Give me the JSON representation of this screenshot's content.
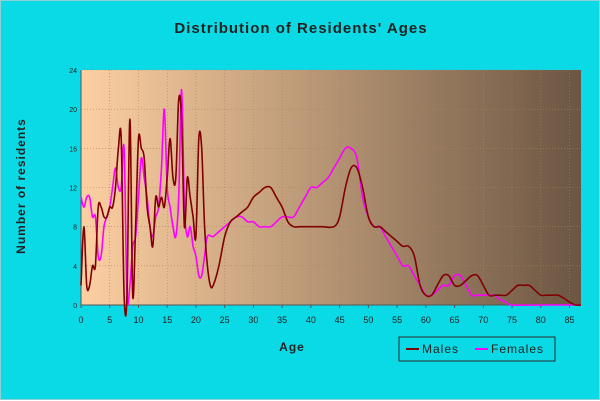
{
  "chart_data": {
    "type": "line",
    "title": "Distribution of Residents' Ages",
    "xlabel": "Age",
    "ylabel": "Number of residents",
    "xlim": [
      0,
      87
    ],
    "ylim": [
      0,
      24
    ],
    "x_ticks": [
      "0",
      "5",
      "10",
      "15",
      "20",
      "25",
      "30",
      "35",
      "40",
      "45",
      "50",
      "55",
      "60",
      "65",
      "70",
      "75",
      "80",
      "85"
    ],
    "y_ticks": [
      "0",
      "4",
      "8",
      "12",
      "16",
      "20",
      "24"
    ],
    "grid": true,
    "legend_position": "bottom-right",
    "colors": {
      "background": "#0ad9e6",
      "plot_start": "#fdd0a2",
      "plot_end": "#6b5643",
      "grid": "#b08060"
    },
    "series": [
      {
        "name": "Males",
        "color": "#800000",
        "points": [
          [
            0,
            2
          ],
          [
            0.5,
            8
          ],
          [
            1,
            2
          ],
          [
            1.5,
            2
          ],
          [
            2,
            4
          ],
          [
            2.5,
            4
          ],
          [
            3,
            10
          ],
          [
            3.5,
            10
          ],
          [
            4,
            9
          ],
          [
            4.5,
            9
          ],
          [
            5,
            10
          ],
          [
            5.5,
            10
          ],
          [
            6,
            12
          ],
          [
            6.5,
            16
          ],
          [
            7,
            17
          ],
          [
            7.5,
            1
          ],
          [
            8,
            1
          ],
          [
            8.5,
            19
          ],
          [
            9,
            1
          ],
          [
            9.5,
            8
          ],
          [
            10,
            17
          ],
          [
            10.5,
            16
          ],
          [
            11,
            15
          ],
          [
            11.5,
            10
          ],
          [
            12,
            8
          ],
          [
            12.5,
            6
          ],
          [
            13,
            11
          ],
          [
            13.5,
            10
          ],
          [
            14,
            11
          ],
          [
            14.5,
            10
          ],
          [
            15,
            13
          ],
          [
            15.5,
            17
          ],
          [
            16,
            13
          ],
          [
            16.5,
            13
          ],
          [
            17,
            21
          ],
          [
            17.5,
            19
          ],
          [
            18,
            8
          ],
          [
            18.5,
            13
          ],
          [
            19,
            11
          ],
          [
            19.5,
            9
          ],
          [
            20,
            7
          ],
          [
            20.5,
            17
          ],
          [
            21,
            16
          ],
          [
            21.5,
            8
          ],
          [
            22,
            4
          ],
          [
            22.5,
            2
          ],
          [
            23,
            2
          ],
          [
            24,
            4
          ],
          [
            25,
            7
          ],
          [
            26,
            8.5
          ],
          [
            27,
            9
          ],
          [
            28,
            9.5
          ],
          [
            29,
            10
          ],
          [
            30,
            11
          ],
          [
            31,
            11.5
          ],
          [
            32,
            12
          ],
          [
            33,
            12
          ],
          [
            34,
            11
          ],
          [
            35,
            10
          ],
          [
            36,
            8.5
          ],
          [
            37,
            8
          ],
          [
            38,
            8
          ],
          [
            40,
            8
          ],
          [
            42,
            8
          ],
          [
            44,
            8
          ],
          [
            45,
            9
          ],
          [
            46,
            12
          ],
          [
            47,
            14
          ],
          [
            48,
            14
          ],
          [
            49,
            12
          ],
          [
            50,
            9
          ],
          [
            51,
            8
          ],
          [
            52,
            8
          ],
          [
            53,
            7.5
          ],
          [
            54,
            7
          ],
          [
            55,
            6.5
          ],
          [
            56,
            6
          ],
          [
            57,
            6
          ],
          [
            58,
            5
          ],
          [
            59,
            2
          ],
          [
            60,
            1
          ],
          [
            61,
            1
          ],
          [
            62,
            2
          ],
          [
            63,
            3
          ],
          [
            64,
            3
          ],
          [
            65,
            2
          ],
          [
            66,
            2
          ],
          [
            67,
            2.5
          ],
          [
            68,
            3
          ],
          [
            69,
            3
          ],
          [
            70,
            2
          ],
          [
            71,
            1
          ],
          [
            72,
            1
          ],
          [
            73,
            1
          ],
          [
            74,
            1
          ],
          [
            75,
            1.5
          ],
          [
            76,
            2
          ],
          [
            77,
            2
          ],
          [
            78,
            2
          ],
          [
            79,
            1.5
          ],
          [
            80,
            1
          ],
          [
            81,
            1
          ],
          [
            82,
            1
          ],
          [
            83,
            1
          ],
          [
            84,
            0.7
          ],
          [
            85,
            0.3
          ],
          [
            86,
            0
          ],
          [
            87,
            0
          ]
        ]
      },
      {
        "name": "Females",
        "color": "#ff00ff",
        "points": [
          [
            0,
            11
          ],
          [
            0.5,
            10
          ],
          [
            1,
            11
          ],
          [
            1.5,
            11
          ],
          [
            2,
            9
          ],
          [
            2.5,
            9
          ],
          [
            3,
            5
          ],
          [
            3.5,
            5
          ],
          [
            4,
            8
          ],
          [
            4.5,
            9
          ],
          [
            5,
            10
          ],
          [
            5.5,
            12
          ],
          [
            6,
            14
          ],
          [
            6.5,
            12
          ],
          [
            7,
            12
          ],
          [
            7.5,
            16
          ],
          [
            8,
            1
          ],
          [
            8.5,
            2
          ],
          [
            9,
            6
          ],
          [
            9.5,
            7
          ],
          [
            10,
            11
          ],
          [
            10.5,
            15
          ],
          [
            11,
            13
          ],
          [
            11.5,
            11
          ],
          [
            12,
            8
          ],
          [
            12.5,
            7
          ],
          [
            13,
            9
          ],
          [
            13.5,
            10
          ],
          [
            14,
            14
          ],
          [
            14.5,
            20
          ],
          [
            15,
            12
          ],
          [
            15.5,
            10
          ],
          [
            16,
            8
          ],
          [
            16.5,
            7
          ],
          [
            17,
            11
          ],
          [
            17.5,
            22
          ],
          [
            18,
            10
          ],
          [
            18.5,
            7
          ],
          [
            19,
            8
          ],
          [
            19.5,
            6
          ],
          [
            20,
            5
          ],
          [
            20.5,
            3
          ],
          [
            21,
            3
          ],
          [
            21.5,
            5
          ],
          [
            22,
            7
          ],
          [
            23,
            7
          ],
          [
            24,
            7.5
          ],
          [
            25,
            8
          ],
          [
            26,
            8.5
          ],
          [
            27,
            9
          ],
          [
            28,
            9
          ],
          [
            29,
            8.5
          ],
          [
            30,
            8.5
          ],
          [
            31,
            8
          ],
          [
            32,
            8
          ],
          [
            33,
            8
          ],
          [
            34,
            8.5
          ],
          [
            35,
            9
          ],
          [
            36,
            9
          ],
          [
            37,
            9
          ],
          [
            38,
            10
          ],
          [
            39,
            11
          ],
          [
            40,
            12
          ],
          [
            41,
            12
          ],
          [
            42,
            12.5
          ],
          [
            43,
            13
          ],
          [
            44,
            14
          ],
          [
            45,
            15
          ],
          [
            46,
            16
          ],
          [
            47,
            16
          ],
          [
            48,
            15
          ],
          [
            49,
            11
          ],
          [
            50,
            9
          ],
          [
            51,
            8
          ],
          [
            52,
            8
          ],
          [
            53,
            7
          ],
          [
            54,
            6
          ],
          [
            55,
            5
          ],
          [
            56,
            4
          ],
          [
            57,
            4
          ],
          [
            58,
            3
          ],
          [
            59,
            2
          ],
          [
            60,
            1
          ],
          [
            61,
            1
          ],
          [
            62,
            1.5
          ],
          [
            63,
            2
          ],
          [
            64,
            2
          ],
          [
            65,
            3
          ],
          [
            66,
            3
          ],
          [
            67,
            2
          ],
          [
            68,
            1
          ],
          [
            69,
            1
          ],
          [
            70,
            1
          ],
          [
            71,
            1
          ],
          [
            72,
            1
          ],
          [
            73,
            0.5
          ],
          [
            74,
            0.3
          ],
          [
            75,
            0
          ],
          [
            80,
            0
          ],
          [
            87,
            0
          ]
        ]
      }
    ]
  }
}
